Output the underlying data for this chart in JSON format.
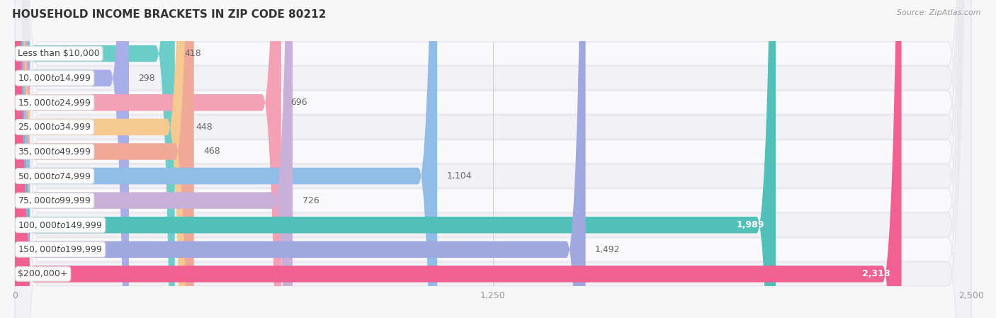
{
  "title": "HOUSEHOLD INCOME BRACKETS IN ZIP CODE 80212",
  "source": "Source: ZipAtlas.com",
  "categories": [
    "Less than $10,000",
    "$10,000 to $14,999",
    "$15,000 to $24,999",
    "$25,000 to $34,999",
    "$35,000 to $49,999",
    "$50,000 to $74,999",
    "$75,000 to $99,999",
    "$100,000 to $149,999",
    "$150,000 to $199,999",
    "$200,000+"
  ],
  "values": [
    418,
    298,
    696,
    448,
    468,
    1104,
    726,
    1989,
    1492,
    2318
  ],
  "bar_colors": [
    "#6dcdc8",
    "#a8aee8",
    "#f4a0b5",
    "#f5c990",
    "#f0a898",
    "#90bce8",
    "#c8b0d8",
    "#50c0b8",
    "#a0a8e0",
    "#f06090"
  ],
  "row_bg_color": "#e8e8ee",
  "row_inner_bg_colors": [
    "#f9f9fb",
    "#f2f2f6"
  ],
  "xlim": [
    0,
    2500
  ],
  "xticks": [
    0,
    1250,
    2500
  ],
  "background_color": "#f7f7f7",
  "title_fontsize": 11,
  "bar_height": 0.68,
  "value_fontsize": 9,
  "label_fontsize": 9,
  "value_inside_threshold": 1800
}
